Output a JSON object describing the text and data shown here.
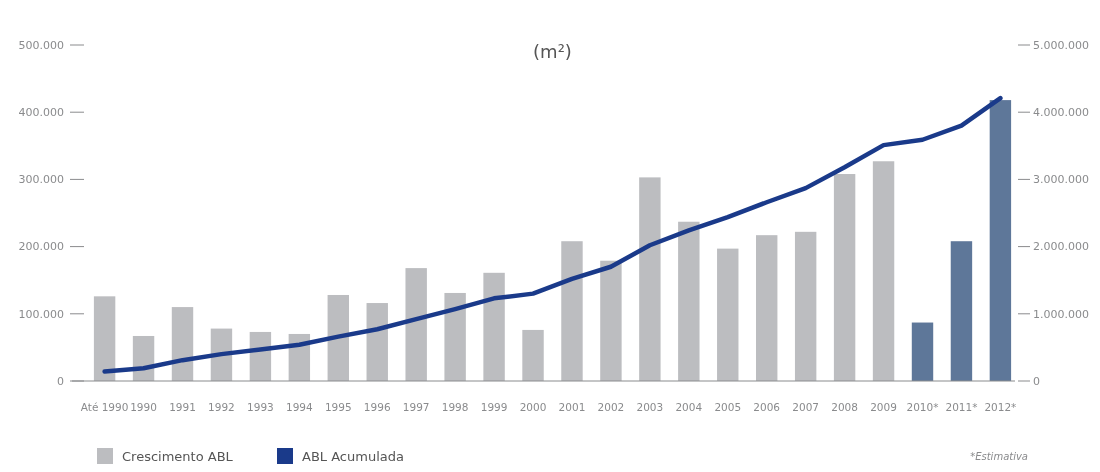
{
  "chart_data": {
    "type": "bar",
    "title": "(m²)",
    "categories": [
      "Até 1990",
      "1990",
      "1991",
      "1992",
      "1993",
      "1994",
      "1995",
      "1996",
      "1997",
      "1998",
      "1999",
      "2000",
      "2001",
      "2002",
      "2003",
      "2004",
      "2005",
      "2006",
      "2007",
      "2008",
      "2009",
      "2010*",
      "2011*",
      "2012*"
    ],
    "series": [
      {
        "name": "Crescimento ABL",
        "color": "#bcbdc0",
        "colors": [
          "#bcbdc0",
          "#bcbdc0",
          "#bcbdc0",
          "#bcbdc0",
          "#bcbdc0",
          "#bcbdc0",
          "#bcbdc0",
          "#bcbdc0",
          "#bcbdc0",
          "#bcbdc0",
          "#bcbdc0",
          "#bcbdc0",
          "#bcbdc0",
          "#bcbdc0",
          "#bcbdc0",
          "#bcbdc0",
          "#bcbdc0",
          "#bcbdc0",
          "#bcbdc0",
          "#bcbdc0",
          "#bcbdc0",
          "#5e7799",
          "#5e7799",
          "#5e7799"
        ],
        "values": [
          126000,
          67000,
          110000,
          78000,
          73000,
          70000,
          128000,
          116000,
          168000,
          131000,
          161000,
          76000,
          208000,
          179000,
          303000,
          237000,
          197000,
          217000,
          222000,
          308000,
          327000,
          87000,
          208000,
          418000
        ]
      },
      {
        "name": "ABL Acumulada",
        "type": "line",
        "axis": "y2",
        "color": "#1a3a8a",
        "values": [
          140000,
          190000,
          310000,
          400000,
          470000,
          540000,
          660000,
          770000,
          920000,
          1070000,
          1230000,
          1300000,
          1520000,
          1700000,
          2020000,
          2240000,
          2440000,
          2660000,
          2870000,
          3180000,
          3510000,
          3590000,
          3800000,
          4210000
        ]
      }
    ],
    "ylim": [
      0,
      500000
    ],
    "yticks": [
      {
        "value": 0,
        "label": "0"
      },
      {
        "value": 100000,
        "label": "100.000"
      },
      {
        "value": 200000,
        "label": "200.000"
      },
      {
        "value": 300000,
        "label": "300.000"
      },
      {
        "value": 400000,
        "label": "400.000"
      },
      {
        "value": 500000,
        "label": "500.000"
      }
    ],
    "y2lim": [
      0,
      5000000
    ],
    "y2ticks": [
      {
        "value": 0,
        "label": "0"
      },
      {
        "value": 1000000,
        "label": "1.000.000"
      },
      {
        "value": 2000000,
        "label": "2.000.000"
      },
      {
        "value": 3000000,
        "label": "3.000.000"
      },
      {
        "value": 4000000,
        "label": "4.000.000"
      },
      {
        "value": 5000000,
        "label": "5.000.000"
      }
    ],
    "legend": "bottom left",
    "annotations": [
      "*Estimativa"
    ]
  }
}
